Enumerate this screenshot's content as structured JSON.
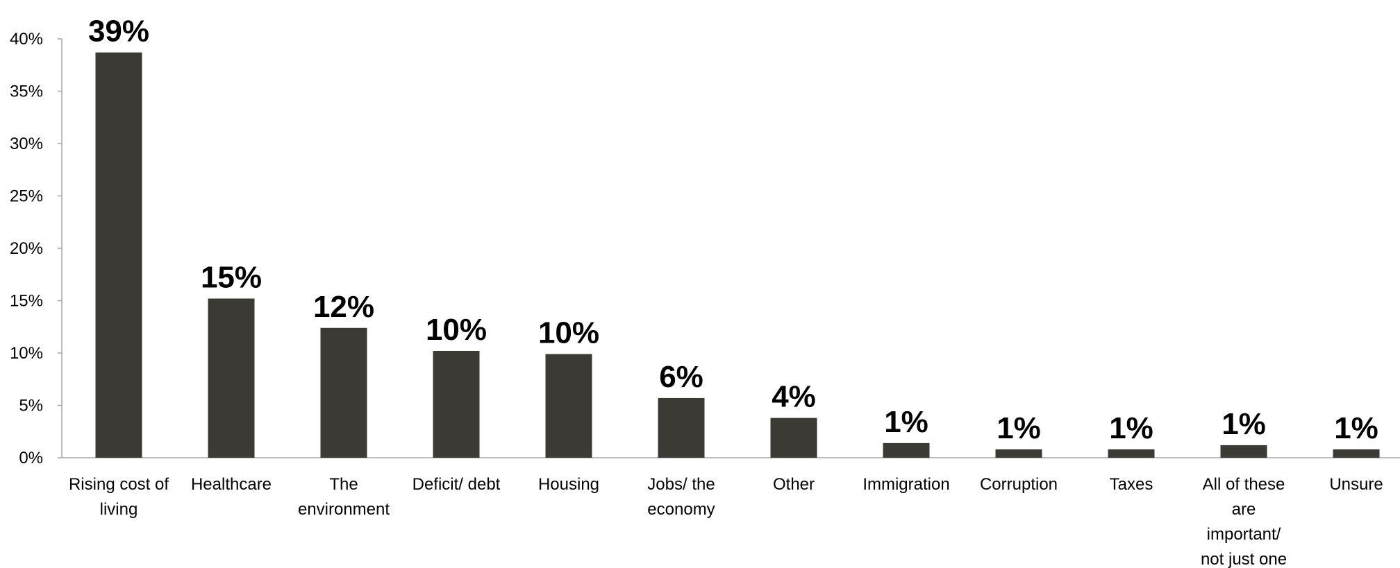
{
  "chart_data": {
    "type": "bar",
    "title": "",
    "xlabel": "",
    "ylabel": "",
    "ylim": [
      0,
      40
    ],
    "y_ticks": [
      "0%",
      "5%",
      "10%",
      "15%",
      "20%",
      "25%",
      "30%",
      "35%",
      "40%"
    ],
    "y_tick_values": [
      0,
      5,
      10,
      15,
      20,
      25,
      30,
      35,
      40
    ],
    "grid": false,
    "legend": "none",
    "categories": [
      "Rising cost of living",
      "Healthcare",
      "The environment",
      "Deficit/ debt",
      "Housing",
      "Jobs/ the economy",
      "Other",
      "Immigration",
      "Corruption",
      "Taxes",
      "All of these are important/ not just one",
      "Unsure"
    ],
    "category_lines": [
      [
        "Rising cost of",
        "living"
      ],
      [
        "Healthcare"
      ],
      [
        "The",
        "environment"
      ],
      [
        "Deficit/ debt"
      ],
      [
        "Housing"
      ],
      [
        "Jobs/ the",
        "economy"
      ],
      [
        "Other"
      ],
      [
        "Immigration"
      ],
      [
        "Corruption"
      ],
      [
        "Taxes"
      ],
      [
        "All of these",
        "are",
        "important/",
        "not just one"
      ],
      [
        "Unsure"
      ]
    ],
    "values": [
      38.7,
      15.2,
      12.4,
      10.2,
      9.9,
      5.7,
      3.8,
      1.4,
      0.8,
      0.8,
      1.2,
      0.8
    ],
    "value_labels": [
      "39%",
      "15%",
      "12%",
      "10%",
      "10%",
      "6%",
      "4%",
      "1%",
      "1%",
      "1%",
      "1%",
      "1%"
    ],
    "colors": {
      "bar": "#3b3a35",
      "axis": "#a6a6a6",
      "text": "#000000"
    }
  }
}
